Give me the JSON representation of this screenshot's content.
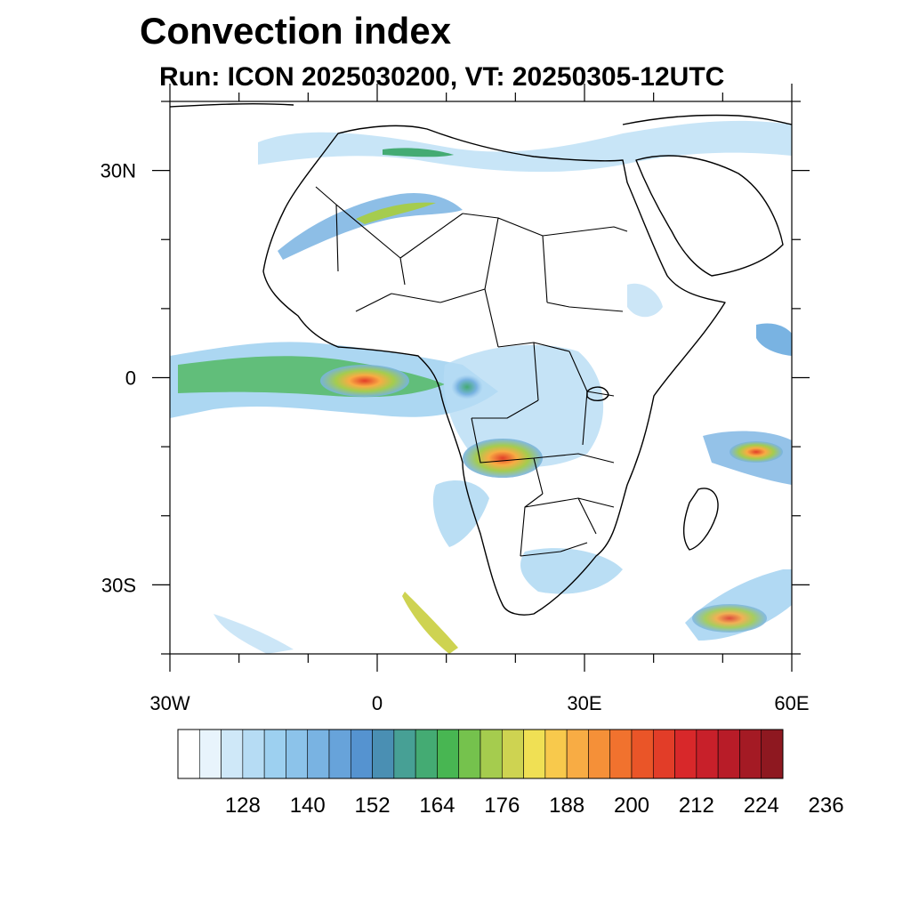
{
  "title": "Convection index",
  "subtitle": "Run: ICON 2025030200,  VT: 20250305-12UTC",
  "map": {
    "lon_range": [
      -30,
      60
    ],
    "lat_range": [
      -40,
      40
    ],
    "lat_ticks": [
      {
        "value": 30,
        "label": "30N"
      },
      {
        "value": 0,
        "label": "0"
      },
      {
        "value": -30,
        "label": "30S"
      }
    ],
    "lon_ticks": [
      {
        "value": -30,
        "label": "30W"
      },
      {
        "value": 0,
        "label": "0"
      },
      {
        "value": 30,
        "label": "30E"
      },
      {
        "value": 60,
        "label": "60E"
      }
    ],
    "minor_lat_ticks": [
      40,
      20,
      10,
      -10,
      -20,
      -40
    ],
    "minor_lon_ticks": [
      -20,
      -10,
      10,
      20,
      40,
      50
    ]
  },
  "colorbar": {
    "colors": [
      "#ffffff",
      "#e8f4fc",
      "#cfe8f8",
      "#b6dcf4",
      "#9dd0f0",
      "#8cc3ea",
      "#79b3e2",
      "#67a3da",
      "#5593d0",
      "#4a8fb3",
      "#47a095",
      "#44ab73",
      "#48b652",
      "#75c24d",
      "#a5cc4e",
      "#ced351",
      "#f0e054",
      "#f8c94c",
      "#f8ac44",
      "#f59038",
      "#f1722e",
      "#ea5528",
      "#e23d28",
      "#d8282a",
      "#c8202a",
      "#b81c28",
      "#a41a24",
      "#8e1820"
    ],
    "labels": [
      "128",
      "140",
      "152",
      "164",
      "176",
      "188",
      "200",
      "212",
      "224",
      "236"
    ]
  }
}
